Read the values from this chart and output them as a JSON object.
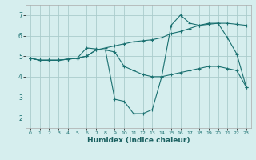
{
  "xlabel": "Humidex (Indice chaleur)",
  "background_color": "#d6eeee",
  "grid_color": "#aacccc",
  "line_color": "#1a7070",
  "xlim": [
    -0.5,
    23.5
  ],
  "ylim": [
    1.5,
    7.5
  ],
  "yticks": [
    2,
    3,
    4,
    5,
    6,
    7
  ],
  "xticks": [
    0,
    1,
    2,
    3,
    4,
    5,
    6,
    7,
    8,
    9,
    10,
    11,
    12,
    13,
    14,
    15,
    16,
    17,
    18,
    19,
    20,
    21,
    22,
    23
  ],
  "series": [
    {
      "x": [
        0,
        1,
        2,
        3,
        4,
        5,
        6,
        7,
        8,
        9,
        10,
        11,
        12,
        13,
        14,
        15,
        16,
        17,
        18,
        19,
        20,
        21,
        22,
        23
      ],
      "y": [
        4.9,
        4.8,
        4.8,
        4.8,
        4.85,
        4.9,
        5.0,
        5.3,
        5.3,
        5.2,
        4.5,
        4.3,
        4.1,
        4.0,
        4.0,
        4.1,
        4.2,
        4.3,
        4.4,
        4.5,
        4.5,
        4.4,
        4.3,
        3.5
      ]
    },
    {
      "x": [
        0,
        1,
        2,
        3,
        4,
        5,
        6,
        7,
        8,
        9,
        10,
        11,
        12,
        13,
        14,
        15,
        16,
        17,
        18,
        19,
        20,
        21,
        22,
        23
      ],
      "y": [
        4.9,
        4.8,
        4.8,
        4.8,
        4.85,
        4.9,
        5.4,
        5.35,
        5.3,
        2.9,
        2.8,
        2.2,
        2.2,
        2.4,
        4.0,
        6.5,
        7.0,
        6.6,
        6.5,
        6.6,
        6.6,
        5.9,
        5.1,
        3.5
      ]
    },
    {
      "x": [
        0,
        1,
        2,
        3,
        4,
        5,
        6,
        7,
        8,
        9,
        10,
        11,
        12,
        13,
        14,
        15,
        16,
        17,
        18,
        19,
        20,
        21,
        22,
        23
      ],
      "y": [
        4.9,
        4.8,
        4.8,
        4.8,
        4.85,
        4.9,
        5.0,
        5.3,
        5.4,
        5.5,
        5.6,
        5.7,
        5.75,
        5.8,
        5.9,
        6.1,
        6.2,
        6.35,
        6.5,
        6.55,
        6.6,
        6.6,
        6.55,
        6.5
      ]
    }
  ]
}
